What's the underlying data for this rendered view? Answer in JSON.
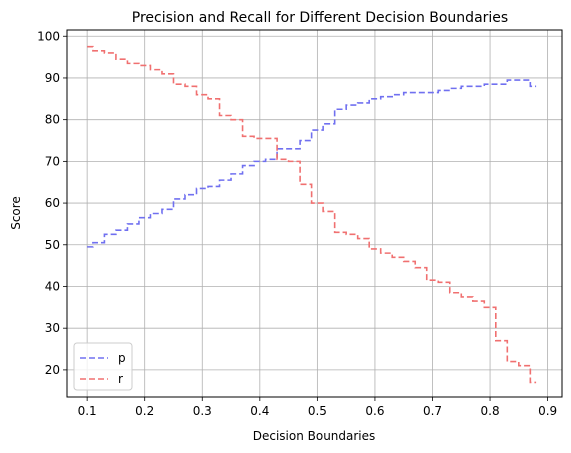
{
  "chart_data": {
    "type": "line",
    "title": "Precision and Recall for Different Decision Boundaries",
    "xlabel": "Decision Boundaries",
    "ylabel": "Score",
    "xlim": [
      0.065,
      0.925
    ],
    "ylim": [
      13.5,
      101.5
    ],
    "xticks": [
      "0.1",
      "0.2",
      "0.3",
      "0.4",
      "0.5",
      "0.6",
      "0.7",
      "0.8",
      "0.9"
    ],
    "xtick_values": [
      0.1,
      0.2,
      0.3,
      0.4,
      0.5,
      0.6,
      0.7,
      0.8,
      0.9
    ],
    "yticks": [
      "20",
      "30",
      "40",
      "50",
      "60",
      "70",
      "80",
      "90",
      "100"
    ],
    "ytick_values": [
      20,
      30,
      40,
      50,
      60,
      70,
      80,
      90,
      100
    ],
    "grid": true,
    "legend_position": "lower-left",
    "x": [
      0.1,
      0.12,
      0.14,
      0.16,
      0.18,
      0.2,
      0.22,
      0.24,
      0.26,
      0.28,
      0.3,
      0.32,
      0.34,
      0.36,
      0.38,
      0.4,
      0.42,
      0.44,
      0.46,
      0.48,
      0.5,
      0.52,
      0.54,
      0.56,
      0.58,
      0.6,
      0.62,
      0.64,
      0.66,
      0.68,
      0.7,
      0.72,
      0.74,
      0.76,
      0.78,
      0.8,
      0.82,
      0.84,
      0.86,
      0.88
    ],
    "series": [
      {
        "name": "p",
        "color": "#7070f0",
        "values": [
          49.5,
          50.5,
          52.5,
          53.5,
          55.0,
          56.5,
          57.5,
          58.5,
          61.0,
          62.0,
          63.5,
          64.0,
          65.5,
          67.0,
          69.0,
          70.0,
          70.5,
          73.0,
          73.0,
          75.0,
          77.5,
          79.0,
          82.5,
          83.5,
          84.0,
          85.0,
          85.5,
          86.0,
          86.5,
          86.5,
          86.5,
          87.0,
          87.5,
          88.0,
          88.0,
          88.5,
          88.5,
          89.5,
          89.5,
          88.0
        ]
      },
      {
        "name": "r",
        "color": "#f07070",
        "values": [
          97.5,
          96.5,
          96.0,
          94.5,
          93.5,
          93.0,
          92.0,
          91.0,
          88.5,
          88.0,
          86.0,
          85.0,
          81.0,
          80.0,
          76.0,
          75.5,
          75.5,
          70.5,
          70.0,
          64.5,
          60.0,
          58.0,
          53.0,
          52.5,
          51.5,
          49.0,
          48.0,
          47.0,
          46.0,
          44.5,
          41.5,
          41.0,
          38.5,
          37.5,
          36.5,
          35.0,
          27.0,
          22.0,
          21.0,
          17.0
        ]
      }
    ]
  }
}
